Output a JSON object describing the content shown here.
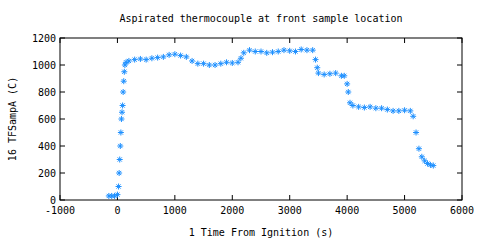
{
  "chart_data": {
    "type": "scatter",
    "title": "Aspirated thermocouple at front sample location",
    "x_label": "1 Time From Ignition (s)",
    "y_label": "16 TFSampA (C)",
    "color": "#1e90ff",
    "marker": "asterisk",
    "grid": false,
    "xlim": [
      -1000,
      6000
    ],
    "xticks": [
      -1000,
      0,
      1000,
      2000,
      3000,
      4000,
      5000,
      6000
    ],
    "ylim": [
      0,
      1200
    ],
    "yticks": [
      0,
      200,
      400,
      600,
      800,
      1000,
      1200
    ],
    "x": [
      -150,
      -100,
      -50,
      0,
      20,
      30,
      40,
      50,
      60,
      70,
      80,
      90,
      100,
      110,
      120,
      130,
      150,
      200,
      300,
      400,
      500,
      600,
      700,
      800,
      900,
      1000,
      1100,
      1200,
      1300,
      1400,
      1500,
      1600,
      1700,
      1800,
      1900,
      2000,
      2100,
      2150,
      2200,
      2300,
      2400,
      2500,
      2600,
      2700,
      2800,
      2900,
      3000,
      3100,
      3200,
      3300,
      3400,
      3450,
      3480,
      3500,
      3600,
      3700,
      3800,
      3900,
      3950,
      4000,
      4020,
      4050,
      4100,
      4200,
      4300,
      4400,
      4500,
      4600,
      4700,
      4800,
      4900,
      5000,
      5100,
      5150,
      5200,
      5250,
      5300,
      5350,
      5400,
      5450,
      5500
    ],
    "values": [
      30,
      30,
      30,
      40,
      100,
      200,
      300,
      400,
      500,
      600,
      650,
      700,
      800,
      880,
      950,
      1000,
      1020,
      1030,
      1040,
      1045,
      1040,
      1050,
      1055,
      1060,
      1075,
      1080,
      1070,
      1060,
      1030,
      1010,
      1010,
      1000,
      1000,
      1010,
      1020,
      1015,
      1020,
      1050,
      1090,
      1110,
      1100,
      1100,
      1090,
      1095,
      1100,
      1110,
      1105,
      1100,
      1115,
      1110,
      1110,
      1040,
      980,
      940,
      930,
      935,
      940,
      920,
      920,
      860,
      800,
      720,
      700,
      690,
      685,
      690,
      680,
      680,
      670,
      660,
      660,
      665,
      660,
      620,
      500,
      380,
      320,
      290,
      270,
      260,
      255
    ]
  }
}
